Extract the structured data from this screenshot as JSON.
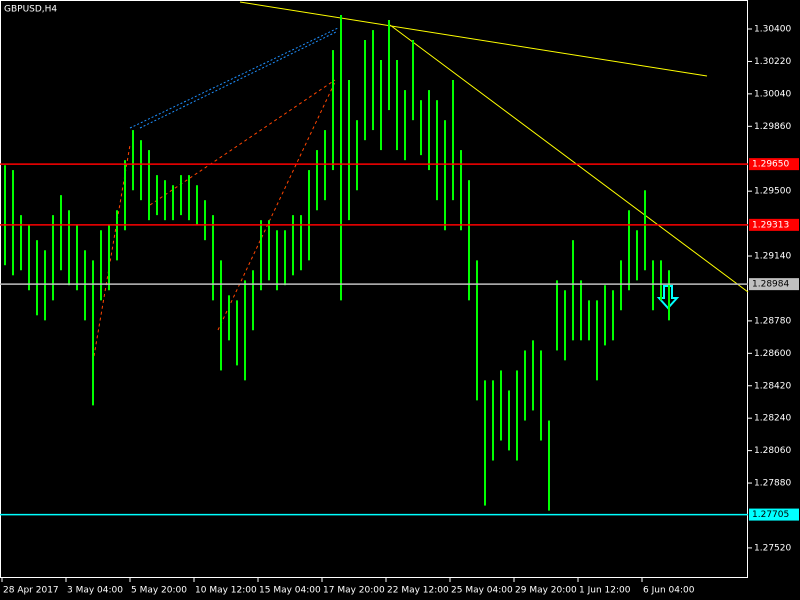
{
  "chart_data": {
    "type": "range-bar",
    "title": "GBPUSD,H4",
    "color": "#00ff00",
    "categories": [
      "28 Apr 2017",
      null,
      null,
      null,
      null,
      null,
      null,
      null,
      "3 May 04:00",
      null,
      null,
      null,
      null,
      null,
      null,
      null,
      "5 May 20:00",
      null,
      null,
      null,
      null,
      null,
      null,
      null,
      "10 May 12:00",
      null,
      null,
      null,
      null,
      null,
      null,
      null,
      "15 May 04:00",
      null,
      null,
      null,
      null,
      null,
      null,
      null,
      "17 May 20:00",
      null,
      null,
      null,
      null,
      null,
      null,
      null,
      "22 May 12:00",
      null,
      null,
      null,
      null,
      null,
      null,
      null,
      "25 May 04:00",
      null,
      null,
      null,
      null,
      null,
      null,
      null,
      "29 May 20:00",
      null,
      null,
      null,
      null,
      null,
      null,
      null,
      "1 Jun 12:00",
      null,
      null,
      null,
      null,
      null,
      null,
      null,
      "6 Jun 04:00",
      null,
      null,
      null
    ],
    "high": [
      1.29644,
      1.29617,
      1.29367,
      1.29311,
      1.29228,
      1.29172,
      1.29367,
      1.29478,
      1.29394,
      1.29311,
      1.29172,
      1.29116,
      1.29283,
      1.29311,
      1.29394,
      1.29672,
      1.29839,
      1.29783,
      1.29728,
      1.29589,
      1.29561,
      1.29533,
      1.29589,
      1.29589,
      1.29533,
      1.2945,
      1.29367,
      1.29116,
      1.28922,
      1.28894,
      1.29005,
      1.29061,
      1.29339,
      1.29339,
      1.29283,
      1.29283,
      1.29367,
      1.29367,
      1.29617,
      1.29728,
      1.29839,
      1.30283,
      1.30478,
      1.30117,
      1.29894,
      1.30339,
      1.30394,
      1.30228,
      1.3045,
      1.30228,
      1.30061,
      1.30339,
      1.30005,
      1.30061,
      1.30005,
      1.29894,
      1.30117,
      1.29728,
      1.29561,
      1.29116,
      1.2845,
      1.2845,
      1.28505,
      1.28394,
      1.28505,
      1.28616,
      1.28672,
      1.28616,
      1.28227,
      1.29005,
      1.2895,
      1.29228,
      1.29005,
      1.28894,
      1.28894,
      1.28978,
      1.2895,
      1.29116,
      1.29394,
      1.29283,
      1.29505,
      1.29116,
      1.29116,
      1.29061
    ],
    "low": [
      1.29089,
      1.29033,
      1.29061,
      1.2895,
      1.28811,
      1.28783,
      1.28894,
      1.29061,
      1.28978,
      1.2895,
      1.28783,
      1.28311,
      1.28894,
      1.2895,
      1.29116,
      1.29283,
      1.29505,
      1.2945,
      1.29339,
      1.29367,
      1.29339,
      1.29339,
      1.29367,
      1.29339,
      1.29311,
      1.29228,
      1.28894,
      1.28505,
      1.28672,
      1.28533,
      1.2845,
      1.28728,
      1.2895,
      1.29005,
      1.2895,
      1.28978,
      1.29033,
      1.29061,
      1.29116,
      1.29394,
      1.2945,
      1.29617,
      1.28894,
      1.29339,
      1.29505,
      1.29783,
      1.29839,
      1.29728,
      1.2995,
      1.29728,
      1.29672,
      1.29894,
      1.297,
      1.29617,
      1.2945,
      1.29283,
      1.2945,
      1.29283,
      1.28894,
      1.28339,
      1.27755,
      1.28005,
      1.28116,
      1.28061,
      1.28005,
      1.28227,
      1.28283,
      1.28116,
      1.27727,
      1.28616,
      1.28561,
      1.28672,
      1.28672,
      1.28672,
      1.2845,
      1.28644,
      1.28672,
      1.28839,
      1.2895,
      1.29005,
      1.29061,
      1.28839,
      1.28894,
      1.28783
    ],
    "ylim": [
      1.27353,
      1.30561
    ],
    "yticks": [
      {
        "value": 1.304,
        "label": "1.30400"
      },
      {
        "value": 1.3022,
        "label": "1.30220"
      },
      {
        "value": 1.3004,
        "label": "1.30040"
      },
      {
        "value": 1.2986,
        "label": "1.29860"
      },
      {
        "value": 1.295,
        "label": "1.29500"
      },
      {
        "value": 1.2914,
        "label": "1.29140"
      },
      {
        "value": 1.2878,
        "label": "1.28780"
      },
      {
        "value": 1.286,
        "label": "1.28600"
      },
      {
        "value": 1.2842,
        "label": "1.28420"
      },
      {
        "value": 1.2824,
        "label": "1.28240"
      },
      {
        "value": 1.2806,
        "label": "1.28060"
      },
      {
        "value": 1.2788,
        "label": "1.27880"
      },
      {
        "value": 1.2752,
        "label": "1.27520"
      }
    ],
    "hlines": [
      {
        "value": 1.2965,
        "label": "1.29650",
        "color": "#ff0000"
      },
      {
        "value": 1.29313,
        "label": "1.29313",
        "color": "#ff0000"
      },
      {
        "value": 1.28984,
        "label": "1.28984",
        "color": "#c0c0c0"
      },
      {
        "value": 1.27705,
        "label": "1.27705",
        "color": "#00ffff"
      }
    ]
  }
}
